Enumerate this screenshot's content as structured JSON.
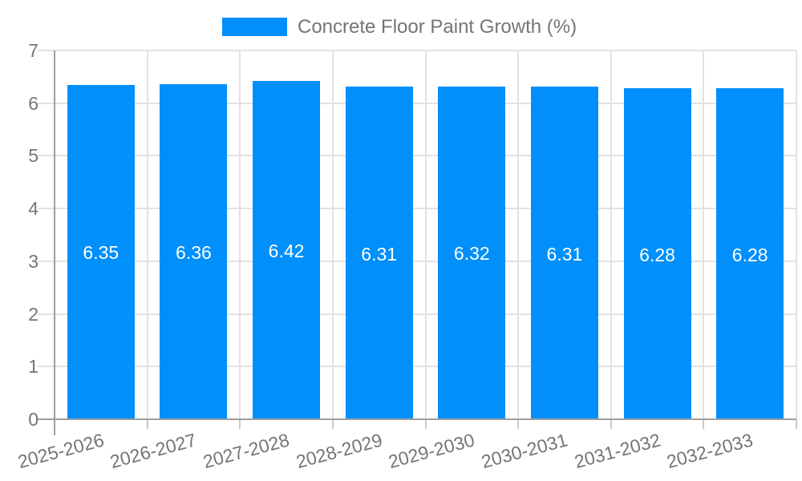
{
  "chart_data": {
    "type": "bar",
    "title": "",
    "legend": {
      "position": "top",
      "label": "Concrete Floor Paint Growth (%)"
    },
    "categories": [
      "2025-2026",
      "2026-2027",
      "2027-2028",
      "2028-2029",
      "2029-2030",
      "2030-2031",
      "2031-2032",
      "2032-2033"
    ],
    "series": [
      {
        "name": "Concrete Floor Paint Growth (%)",
        "values": [
          6.35,
          6.36,
          6.42,
          6.31,
          6.32,
          6.31,
          6.28,
          6.28
        ]
      }
    ],
    "value_labels": [
      "6.35",
      "6.36",
      "6.42",
      "6.31",
      "6.32",
      "6.31",
      "6.28",
      "6.28"
    ],
    "xlabel": "",
    "ylabel": "",
    "ylim": [
      0,
      7
    ],
    "yticks": [
      0,
      1,
      2,
      3,
      4,
      5,
      6,
      7
    ],
    "grid": true,
    "x_label_rotation_deg": -15,
    "colors": {
      "bar": "#008FFB",
      "axis_text": "#757575",
      "value_label_text": "#ffffff",
      "gridline": "#e2e2e2",
      "axis_line": "#9e9e9e",
      "boundary_tick": "#c9c9c9",
      "background": "#ffffff"
    }
  }
}
